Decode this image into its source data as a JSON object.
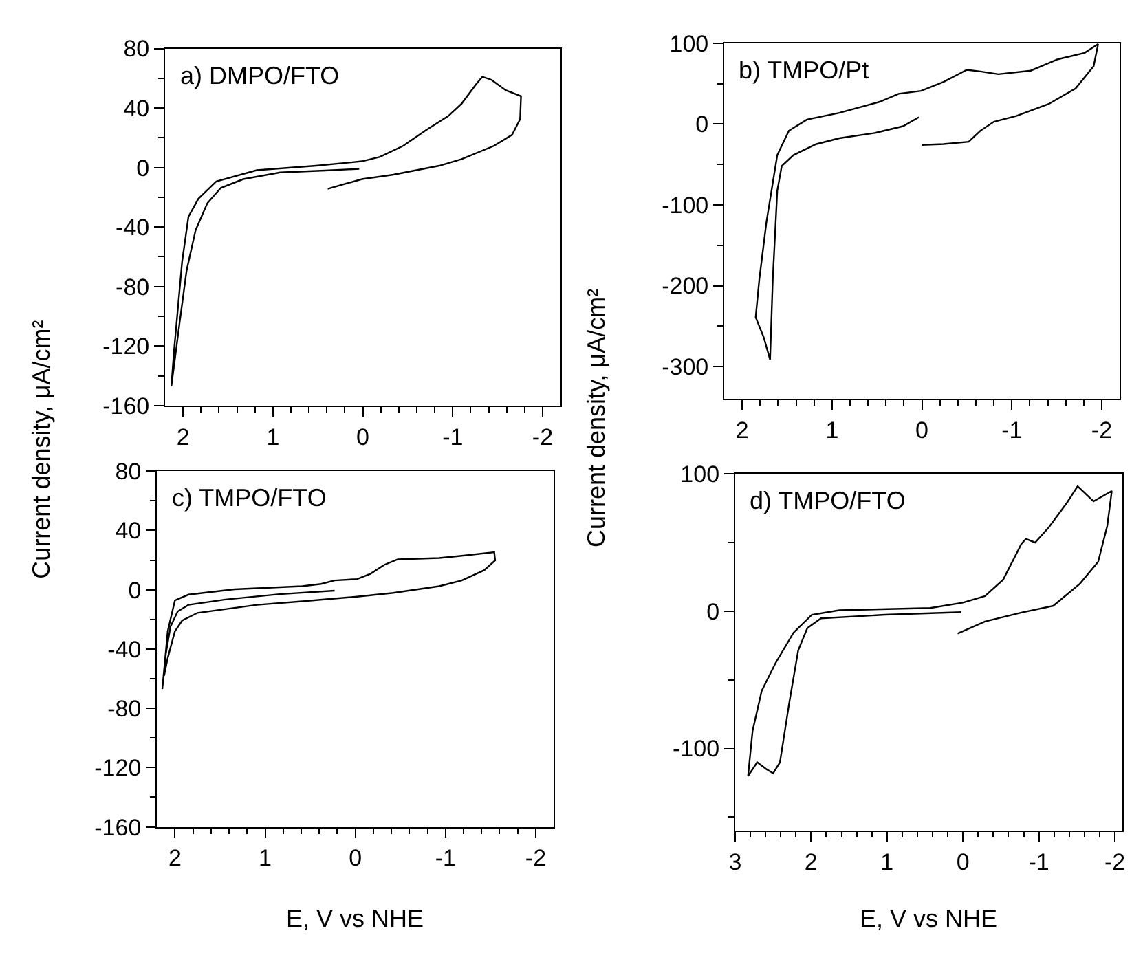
{
  "chart_data": [
    {
      "type": "line",
      "title": "a) DMPO/FTO",
      "ylabel": "Current density, μA/cm²",
      "xlim": [
        2.2,
        -2.2
      ],
      "ylim": [
        -160,
        80
      ],
      "xticks": [
        2,
        {
          "value": 1.8,
          "label": null
        },
        {
          "value": 1.6,
          "label": null
        },
        {
          "value": 1.4,
          "label": null
        },
        {
          "value": 1.2,
          "label": null
        },
        1,
        {
          "value": 0.8,
          "label": null
        },
        {
          "value": 0.6,
          "label": null
        },
        {
          "value": 0.4,
          "label": null
        },
        {
          "value": 0.2,
          "label": null
        },
        0,
        {
          "value": -0.2,
          "label": null
        },
        {
          "value": -0.4,
          "label": null
        },
        {
          "value": -0.6,
          "label": null
        },
        {
          "value": -0.8,
          "label": null
        },
        -1,
        {
          "value": -1.2,
          "label": null
        },
        {
          "value": -1.4,
          "label": null
        },
        {
          "value": -1.6,
          "label": null
        },
        {
          "value": -1.8,
          "label": null
        },
        -2
      ],
      "yticks": [
        80,
        {
          "value": 60,
          "label": null
        },
        40,
        {
          "value": 20,
          "label": null
        },
        0,
        {
          "value": -20,
          "label": null
        },
        -40,
        {
          "value": -60,
          "label": null
        },
        -80,
        {
          "value": -100,
          "label": null
        },
        -120,
        {
          "value": -140,
          "label": null
        },
        -160
      ],
      "series": [
        {
          "color": "#000000",
          "x": [
            0.04,
            0.42,
            0.92,
            1.33,
            1.58,
            1.73,
            1.86,
            1.96,
            2.04,
            2.13,
            2.1,
            2.01,
            1.94,
            1.83,
            1.63,
            1.18,
            0.52,
            0.01,
            -0.19,
            -0.45,
            -0.7,
            -0.95,
            -1.1,
            -1.26,
            -1.33,
            -1.43,
            -1.59,
            -1.76,
            -1.75,
            -1.66,
            -1.46,
            -1.1,
            -0.85,
            -0.34,
            0.01,
            0.39
          ],
          "values": [
            -0.9,
            -2,
            -3.3,
            -7.8,
            -13.7,
            -24,
            -42,
            -69,
            -105,
            -147,
            -123,
            -63,
            -33,
            -21,
            -9.3,
            -1.8,
            1.2,
            4.2,
            7.2,
            14.6,
            25,
            34.6,
            43,
            56,
            61,
            59,
            52,
            48,
            32.5,
            22,
            14.6,
            5.7,
            1.2,
            -4.8,
            -7.8,
            -14.3
          ]
        }
      ]
    },
    {
      "type": "line",
      "title": "b) TMPO/Pt",
      "ylabel": "Current density, μA/cm²",
      "xlim": [
        2.2,
        -2.2
      ],
      "ylim": [
        -340,
        100
      ],
      "xticks": [
        2,
        {
          "value": 1.8,
          "label": null
        },
        {
          "value": 1.6,
          "label": null
        },
        {
          "value": 1.4,
          "label": null
        },
        {
          "value": 1.2,
          "label": null
        },
        1,
        {
          "value": 0.8,
          "label": null
        },
        {
          "value": 0.6,
          "label": null
        },
        {
          "value": 0.4,
          "label": null
        },
        {
          "value": 0.2,
          "label": null
        },
        0,
        {
          "value": -0.2,
          "label": null
        },
        {
          "value": -0.4,
          "label": null
        },
        {
          "value": -0.6,
          "label": null
        },
        {
          "value": -0.8,
          "label": null
        },
        -1,
        {
          "value": -1.2,
          "label": null
        },
        {
          "value": -1.4,
          "label": null
        },
        {
          "value": -1.6,
          "label": null
        },
        {
          "value": -1.8,
          "label": null
        },
        -2
      ],
      "yticks": [
        100,
        {
          "value": 50,
          "label": null
        },
        0,
        {
          "value": -50,
          "label": null
        },
        -100,
        {
          "value": -150,
          "label": null
        },
        -200,
        {
          "value": -250,
          "label": null
        },
        -300
      ],
      "series": [
        {
          "color": "#000000",
          "x": [
            0.035,
            0.21,
            0.52,
            0.92,
            1.18,
            1.43,
            1.56,
            1.61,
            1.66,
            1.69,
            1.76,
            1.85,
            1.81,
            1.73,
            1.61,
            1.48,
            1.28,
            0.92,
            0.47,
            0.26,
            0.01,
            -0.24,
            -0.5,
            -0.65,
            -0.85,
            -1.21,
            -1.51,
            -1.81,
            -1.96,
            -1.91,
            -1.71,
            -1.41,
            -1.05,
            -0.8,
            -0.65,
            -0.52,
            -0.24,
            0.0
          ],
          "values": [
            8.3,
            -2.7,
            -11,
            -17.6,
            -25,
            -38.5,
            -52,
            -82.5,
            -192.5,
            -291.5,
            -264,
            -239,
            -192.5,
            -121,
            -38.5,
            -8.3,
            5.5,
            13.8,
            27.5,
            37.4,
            41,
            52,
            67,
            65,
            61.6,
            66,
            80,
            88,
            99,
            71.5,
            44,
            24.8,
            9.9,
            2.75,
            -8.3,
            -22,
            -24.8,
            -25.9
          ]
        }
      ]
    },
    {
      "type": "line",
      "title": "c) TMPO/FTO",
      "xlabel": "E, V vs NHE",
      "xlim": [
        2.2,
        -2.2
      ],
      "ylim": [
        -160,
        80
      ],
      "xticks": [
        2,
        {
          "value": 1.8,
          "label": null
        },
        {
          "value": 1.6,
          "label": null
        },
        {
          "value": 1.4,
          "label": null
        },
        {
          "value": 1.2,
          "label": null
        },
        1,
        {
          "value": 0.8,
          "label": null
        },
        {
          "value": 0.6,
          "label": null
        },
        {
          "value": 0.4,
          "label": null
        },
        {
          "value": 0.2,
          "label": null
        },
        0,
        {
          "value": -0.2,
          "label": null
        },
        {
          "value": -0.4,
          "label": null
        },
        {
          "value": -0.6,
          "label": null
        },
        {
          "value": -0.8,
          "label": null
        },
        -1,
        {
          "value": -1.2,
          "label": null
        },
        {
          "value": -1.4,
          "label": null
        },
        {
          "value": -1.6,
          "label": null
        },
        {
          "value": -1.8,
          "label": null
        },
        -2
      ],
      "yticks": [
        80,
        {
          "value": 60,
          "label": null
        },
        40,
        {
          "value": 20,
          "label": null
        },
        0,
        {
          "value": -20,
          "label": null
        },
        -40,
        {
          "value": -60,
          "label": null
        },
        -80,
        {
          "value": -100,
          "label": null
        },
        -120,
        {
          "value": -140,
          "label": null
        },
        -160
      ],
      "series": [
        {
          "color": "#000000",
          "x": [
            0.23,
            0.84,
            1.44,
            1.85,
            1.97,
            2.05,
            2.1,
            2.14,
            2.08,
            2.0,
            1.85,
            1.34,
            0.59,
            0.38,
            0.23,
            -0.02,
            -0.17,
            -0.32,
            -0.47,
            -0.93,
            -1.18,
            -1.54,
            -1.55,
            -1.43,
            -1.18,
            -0.93,
            -0.42,
            0,
            0.59,
            1.09,
            1.75,
            1.92,
            2.0,
            2.08,
            2.12
          ],
          "values": [
            -0.6,
            -3,
            -6.6,
            -10.2,
            -14.7,
            -25,
            -43,
            -67,
            -28,
            -7.2,
            -3.3,
            0.3,
            2.4,
            3.9,
            6.3,
            7.2,
            10.8,
            16.8,
            20.5,
            21.4,
            22.9,
            25.3,
            19.8,
            13.2,
            6.3,
            2.4,
            -2.1,
            -4.8,
            -7.8,
            -10.2,
            -15.6,
            -20.8,
            -28,
            -46,
            -58
          ]
        }
      ]
    },
    {
      "type": "line",
      "title": "d) TMPO/FTO",
      "xlabel": "E, V vs NHE",
      "xlim": [
        3,
        -2.1
      ],
      "ylim": [
        -160,
        100
      ],
      "xticks": [
        3,
        {
          "value": 2.8,
          "label": null
        },
        {
          "value": 2.6,
          "label": null
        },
        {
          "value": 2.4,
          "label": null
        },
        {
          "value": 2.2,
          "label": null
        },
        2,
        {
          "value": 1.8,
          "label": null
        },
        {
          "value": 1.6,
          "label": null
        },
        {
          "value": 1.4,
          "label": null
        },
        {
          "value": 1.2,
          "label": null
        },
        1,
        {
          "value": 0.8,
          "label": null
        },
        {
          "value": 0.6,
          "label": null
        },
        {
          "value": 0.4,
          "label": null
        },
        {
          "value": 0.2,
          "label": null
        },
        0,
        {
          "value": -0.2,
          "label": null
        },
        {
          "value": -0.4,
          "label": null
        },
        {
          "value": -0.6,
          "label": null
        },
        {
          "value": -0.8,
          "label": null
        },
        -1,
        {
          "value": -1.2,
          "label": null
        },
        {
          "value": -1.4,
          "label": null
        },
        {
          "value": -1.6,
          "label": null
        },
        {
          "value": -1.8,
          "label": null
        },
        -2
      ],
      "yticks": [
        100,
        {
          "value": 50,
          "label": null
        },
        0,
        {
          "value": -50,
          "label": null
        },
        -100,
        {
          "value": -150,
          "label": null
        }
      ],
      "series": [
        {
          "color": "#000000",
          "x": [
            0.02,
            1.03,
            1.87,
            2.05,
            2.17,
            2.29,
            2.41,
            2.5,
            2.59,
            2.71,
            2.83,
            2.77,
            2.65,
            2.47,
            2.23,
            1.99,
            1.63,
            0.43,
            0,
            -0.29,
            -0.53,
            -0.77,
            -0.83,
            -0.95,
            -1.13,
            -1.37,
            -1.51,
            -1.72,
            -1.96,
            -1.9,
            -1.78,
            -1.54,
            -1.19,
            -0.77,
            -0.29,
            0.07
          ],
          "values": [
            -0.7,
            -2.6,
            -5.2,
            -12.4,
            -28.6,
            -67.6,
            -110,
            -118,
            -115,
            -110,
            -120,
            -87,
            -58,
            -38,
            -15.6,
            -2.6,
            0.7,
            2.3,
            6.2,
            11,
            23,
            49,
            52.7,
            50,
            61,
            79,
            91,
            80,
            87.5,
            62,
            36,
            20,
            3.9,
            -1,
            -7.5,
            -16.3
          ]
        }
      ]
    }
  ]
}
